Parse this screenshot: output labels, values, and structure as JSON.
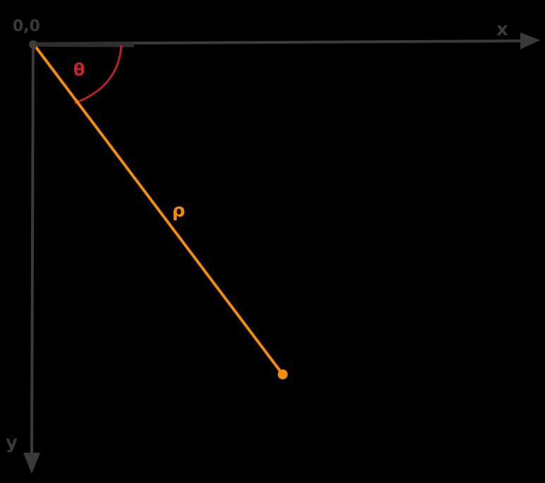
{
  "labels": {
    "origin": "0,0",
    "x_axis": "x",
    "y_axis": "y",
    "angle": "θ",
    "radius": "ρ"
  },
  "colors": {
    "background": "#000000",
    "axes": "#3a3a3a",
    "radius_line": "#f28c0f",
    "angle_arc": "#b3242a",
    "angle_label": "#c9252b",
    "radius_label": "#f28c0f"
  },
  "icons": {
    "x_axis_arrow": "arrow-right-icon",
    "y_axis_arrow": "arrow-down-icon",
    "end_point": "dot-icon"
  }
}
